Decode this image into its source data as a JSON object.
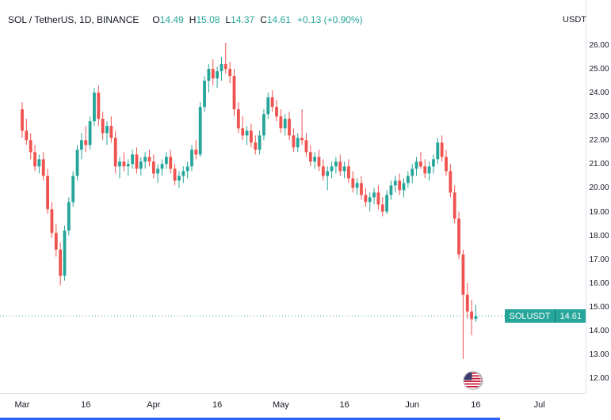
{
  "header": {
    "symbol_title": "SOL / TetherUS, 1D, BINANCE",
    "ohlc": [
      {
        "label": "O",
        "value": "14.49"
      },
      {
        "label": "H",
        "value": "15.08"
      },
      {
        "label": "L",
        "value": "14.37"
      },
      {
        "label": "C",
        "value": "14.61"
      }
    ],
    "change": "+0.13 (+0.90%)",
    "currency_label": "USDT"
  },
  "price_label": {
    "symbol": "SOLUSDT",
    "price": "14.61"
  },
  "colors": {
    "up": "#26a69a",
    "down": "#ef5350",
    "accent_blue": "#2962ff",
    "text": "#131722"
  },
  "event_markers": [
    {
      "icon": "us-flag"
    },
    {
      "icon": "us-flag"
    }
  ],
  "chart_data": {
    "type": "candlestick",
    "title": "SOL / TetherUS, 1D, BINANCE",
    "symbol": "SOLUSDT",
    "interval": "1D",
    "exchange": "BINANCE",
    "last_price": 14.61,
    "ylim": [
      11.6,
      26.4
    ],
    "price_ticks": [
      "26.00",
      "25.00",
      "24.00",
      "23.00",
      "22.00",
      "21.00",
      "20.00",
      "19.00",
      "18.00",
      "17.00",
      "16.00",
      "15.00",
      "14.00",
      "13.00",
      "12.00"
    ],
    "time_ticks": [
      {
        "label": "Mar",
        "day": 0
      },
      {
        "label": "16",
        "day": 15
      },
      {
        "label": "Apr",
        "day": 31
      },
      {
        "label": "16",
        "day": 46
      },
      {
        "label": "May",
        "day": 61
      },
      {
        "label": "16",
        "day": 76
      },
      {
        "label": "Jun",
        "day": 92
      },
      {
        "label": "16",
        "day": 107
      },
      {
        "label": "Jul",
        "day": 122
      }
    ],
    "candles": [
      [
        23.3,
        23.6,
        22.1,
        22.4
      ],
      [
        22.4,
        22.9,
        21.8,
        22.0
      ],
      [
        22.0,
        22.3,
        21.2,
        21.5
      ],
      [
        21.5,
        21.8,
        20.7,
        20.9
      ],
      [
        20.9,
        21.4,
        20.6,
        21.2
      ],
      [
        21.2,
        21.5,
        20.3,
        20.5
      ],
      [
        20.5,
        20.8,
        18.9,
        19.1
      ],
      [
        19.1,
        19.4,
        17.9,
        18.1
      ],
      [
        18.1,
        18.5,
        17.1,
        17.4
      ],
      [
        17.4,
        17.7,
        15.9,
        16.3
      ],
      [
        16.3,
        18.4,
        16.1,
        18.2
      ],
      [
        18.2,
        19.6,
        18.0,
        19.4
      ],
      [
        19.4,
        20.7,
        19.2,
        20.5
      ],
      [
        20.5,
        21.8,
        20.3,
        21.6
      ],
      [
        21.6,
        22.3,
        21.2,
        22.0
      ],
      [
        22.0,
        22.6,
        21.5,
        21.8
      ],
      [
        21.8,
        23.0,
        21.6,
        22.8
      ],
      [
        22.8,
        24.2,
        22.6,
        24.0
      ],
      [
        24.0,
        24.3,
        22.6,
        22.9
      ],
      [
        22.9,
        23.2,
        22.0,
        22.3
      ],
      [
        22.3,
        22.8,
        21.8,
        22.6
      ],
      [
        22.6,
        23.0,
        21.9,
        22.1
      ],
      [
        22.1,
        22.4,
        20.6,
        20.9
      ],
      [
        20.9,
        21.3,
        20.4,
        21.1
      ],
      [
        21.1,
        21.5,
        20.7,
        20.9
      ],
      [
        20.9,
        21.2,
        20.5,
        21.0
      ],
      [
        21.0,
        21.6,
        20.8,
        21.4
      ],
      [
        21.4,
        21.7,
        20.6,
        20.8
      ],
      [
        20.8,
        21.3,
        20.5,
        21.1
      ],
      [
        21.1,
        21.5,
        20.8,
        21.3
      ],
      [
        21.3,
        21.6,
        20.9,
        21.1
      ],
      [
        21.1,
        21.4,
        20.4,
        20.6
      ],
      [
        20.6,
        21.0,
        20.2,
        20.8
      ],
      [
        20.8,
        21.2,
        20.5,
        21.0
      ],
      [
        21.0,
        21.5,
        20.8,
        21.3
      ],
      [
        21.3,
        21.6,
        20.6,
        20.8
      ],
      [
        20.8,
        21.0,
        20.1,
        20.3
      ],
      [
        20.3,
        20.7,
        20.0,
        20.5
      ],
      [
        20.5,
        20.9,
        20.2,
        20.7
      ],
      [
        20.7,
        21.1,
        20.4,
        20.9
      ],
      [
        20.9,
        21.8,
        20.7,
        21.6
      ],
      [
        21.6,
        22.0,
        21.2,
        21.4
      ],
      [
        21.4,
        23.6,
        21.3,
        23.4
      ],
      [
        23.4,
        24.7,
        23.2,
        24.5
      ],
      [
        24.5,
        25.2,
        24.0,
        25.0
      ],
      [
        25.0,
        25.4,
        24.3,
        24.6
      ],
      [
        24.6,
        25.1,
        24.2,
        24.9
      ],
      [
        24.9,
        25.5,
        24.5,
        25.2
      ],
      [
        25.2,
        26.1,
        24.8,
        25.0
      ],
      [
        25.0,
        25.3,
        24.4,
        24.7
      ],
      [
        24.7,
        25.0,
        23.0,
        23.3
      ],
      [
        23.3,
        23.6,
        22.3,
        22.5
      ],
      [
        22.5,
        23.0,
        22.0,
        22.2
      ],
      [
        22.2,
        22.6,
        21.8,
        22.4
      ],
      [
        22.4,
        22.7,
        21.7,
        21.9
      ],
      [
        21.9,
        22.2,
        21.4,
        21.6
      ],
      [
        21.6,
        22.4,
        21.4,
        22.2
      ],
      [
        22.2,
        23.3,
        22.0,
        23.1
      ],
      [
        23.1,
        24.0,
        22.9,
        23.8
      ],
      [
        23.8,
        24.1,
        23.2,
        23.4
      ],
      [
        23.4,
        23.7,
        22.8,
        23.0
      ],
      [
        23.0,
        23.3,
        22.3,
        22.5
      ],
      [
        22.5,
        23.1,
        22.2,
        22.9
      ],
      [
        22.9,
        23.2,
        22.0,
        22.2
      ],
      [
        22.2,
        22.5,
        21.5,
        21.7
      ],
      [
        21.7,
        22.3,
        21.5,
        22.1
      ],
      [
        22.1,
        23.3,
        21.8,
        22.0
      ],
      [
        22.0,
        22.3,
        21.3,
        21.5
      ],
      [
        21.5,
        21.8,
        20.9,
        21.1
      ],
      [
        21.1,
        21.5,
        20.8,
        21.3
      ],
      [
        21.3,
        21.6,
        20.7,
        20.9
      ],
      [
        20.9,
        21.2,
        20.3,
        20.5
      ],
      [
        20.5,
        20.9,
        19.9,
        20.7
      ],
      [
        20.7,
        21.1,
        20.4,
        20.9
      ],
      [
        20.9,
        21.3,
        20.6,
        21.1
      ],
      [
        21.1,
        21.4,
        20.5,
        20.7
      ],
      [
        20.7,
        21.1,
        20.4,
        20.9
      ],
      [
        20.9,
        21.2,
        20.2,
        20.4
      ],
      [
        20.4,
        20.7,
        19.8,
        20.0
      ],
      [
        20.0,
        20.4,
        19.7,
        20.2
      ],
      [
        20.2,
        20.5,
        19.5,
        19.7
      ],
      [
        19.7,
        20.0,
        19.2,
        19.4
      ],
      [
        19.4,
        19.8,
        19.0,
        19.6
      ],
      [
        19.6,
        20.0,
        19.3,
        19.8
      ],
      [
        19.8,
        20.1,
        19.1,
        19.3
      ],
      [
        19.3,
        19.6,
        18.8,
        19.0
      ],
      [
        19.0,
        19.9,
        18.9,
        19.7
      ],
      [
        19.7,
        20.3,
        19.5,
        20.1
      ],
      [
        20.1,
        20.5,
        19.8,
        20.3
      ],
      [
        20.3,
        20.6,
        19.7,
        19.9
      ],
      [
        19.9,
        20.4,
        19.6,
        20.2
      ],
      [
        20.2,
        20.7,
        20.0,
        20.5
      ],
      [
        20.5,
        21.0,
        20.2,
        20.8
      ],
      [
        20.8,
        21.3,
        20.5,
        21.1
      ],
      [
        21.1,
        21.5,
        20.8,
        20.9
      ],
      [
        20.9,
        21.2,
        20.4,
        20.6
      ],
      [
        20.6,
        21.1,
        20.3,
        20.9
      ],
      [
        20.9,
        21.4,
        20.6,
        21.2
      ],
      [
        21.2,
        22.1,
        21.0,
        21.9
      ],
      [
        21.9,
        22.2,
        21.1,
        21.3
      ],
      [
        21.3,
        21.6,
        20.5,
        20.7
      ],
      [
        20.7,
        21.0,
        19.6,
        19.8
      ],
      [
        19.8,
        20.1,
        18.5,
        18.7
      ],
      [
        18.7,
        19.0,
        17.0,
        17.2
      ],
      [
        17.2,
        17.4,
        12.8,
        15.5
      ],
      [
        15.5,
        16.0,
        14.5,
        14.8
      ],
      [
        14.8,
        15.3,
        13.8,
        14.48
      ],
      [
        14.49,
        15.08,
        14.37,
        14.61
      ]
    ]
  }
}
